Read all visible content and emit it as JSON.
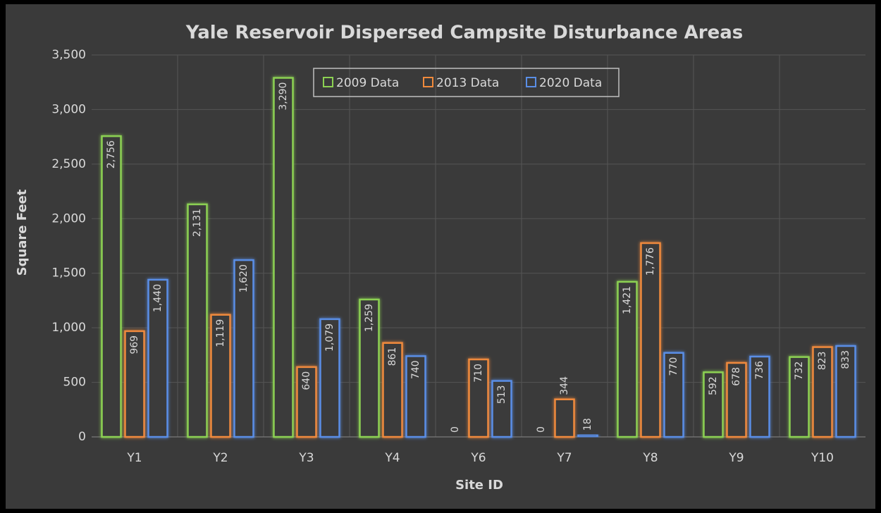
{
  "chart_data": {
    "type": "bar",
    "title": "Yale Reservoir Dispersed Campsite Disturbance Areas",
    "x_label": "Site ID",
    "y_label": "Square Feet",
    "categories": [
      "Y1",
      "Y2",
      "Y3",
      "Y4",
      "Y6",
      "Y7",
      "Y8",
      "Y9",
      "Y10"
    ],
    "series": [
      {
        "name": "2009 Data",
        "color": "#8cd152",
        "values": [
          2756,
          2131,
          3290,
          1259,
          0,
          0,
          1421,
          592,
          732
        ],
        "value_labels": [
          "2,756",
          "2,131",
          "3,290",
          "1,259",
          "0",
          "0",
          "1,421",
          "592",
          "732"
        ]
      },
      {
        "name": "2013 Data",
        "color": "#f08a3c",
        "values": [
          969,
          1119,
          640,
          861,
          710,
          344,
          1776,
          678,
          823
        ],
        "value_labels": [
          "969",
          "1,119",
          "640",
          "861",
          "710",
          "344",
          "1,776",
          "678",
          "823"
        ]
      },
      {
        "name": "2020 Data",
        "color": "#5a8ee6",
        "values": [
          1440,
          1620,
          1079,
          740,
          513,
          18,
          770,
          736,
          833
        ],
        "value_labels": [
          "1,440",
          "1,620",
          "1,079",
          "740",
          "513",
          "18",
          "770",
          "736",
          "833"
        ]
      }
    ],
    "ylim": [
      0,
      3500
    ],
    "yticks": [
      0,
      500,
      {
        "value": 1000,
        "label": "1,000"
      },
      {
        "value": 1500,
        "label": "1,500"
      },
      {
        "value": 2000,
        "label": "2,000"
      },
      {
        "value": 2500,
        "label": "2,500"
      },
      {
        "value": 3000,
        "label": "3,000"
      },
      {
        "value": 3500,
        "label": "3,500"
      }
    ],
    "grid": true,
    "legend": "top"
  }
}
